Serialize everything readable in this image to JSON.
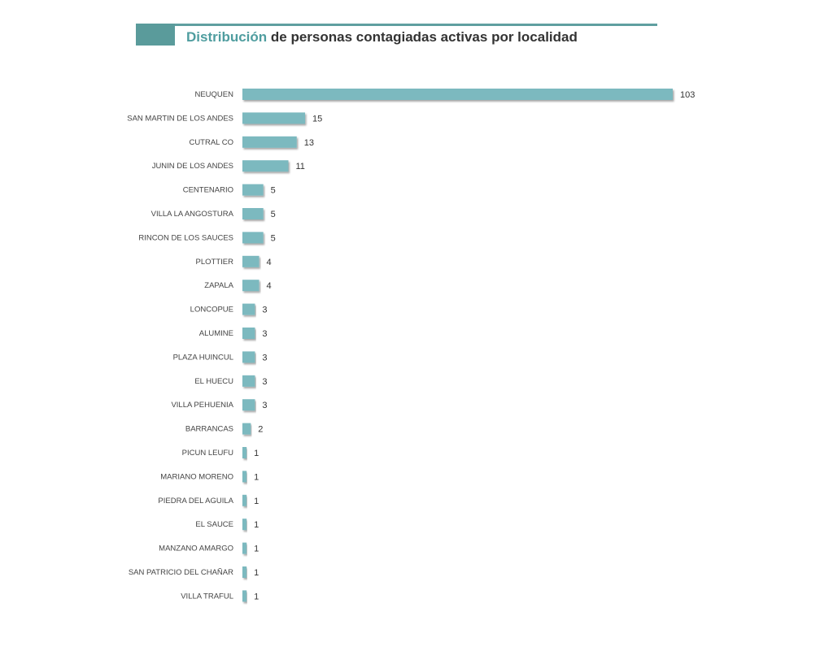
{
  "chart_data": {
    "type": "bar",
    "orientation": "horizontal",
    "title_highlight": "Distribución",
    "title_rest": " de personas contagiadas activas por localidad",
    "categories": [
      "NEUQUEN",
      "SAN MARTIN DE LOS ANDES",
      "CUTRAL CO",
      "JUNIN DE LOS ANDES",
      "CENTENARIO",
      "VILLA LA ANGOSTURA",
      "RINCON DE LOS SAUCES",
      "PLOTTIER",
      "ZAPALA",
      "LONCOPUE",
      "ALUMINE",
      "PLAZA HUINCUL",
      "EL HUECU",
      "VILLA PEHUENIA",
      "BARRANCAS",
      "PICUN LEUFU",
      "MARIANO MORENO",
      "PIEDRA DEL AGUILA",
      "EL SAUCE",
      "MANZANO AMARGO",
      "SAN PATRICIO DEL CHAÑAR",
      "VILLA TRAFUL"
    ],
    "values": [
      103,
      15,
      13,
      11,
      5,
      5,
      5,
      4,
      4,
      3,
      3,
      3,
      3,
      3,
      2,
      1,
      1,
      1,
      1,
      1,
      1,
      1
    ],
    "xlim": [
      0,
      103
    ],
    "grid": false,
    "colors": {
      "bar": "#7bb9bf",
      "accent": "#5a9b9b"
    }
  }
}
